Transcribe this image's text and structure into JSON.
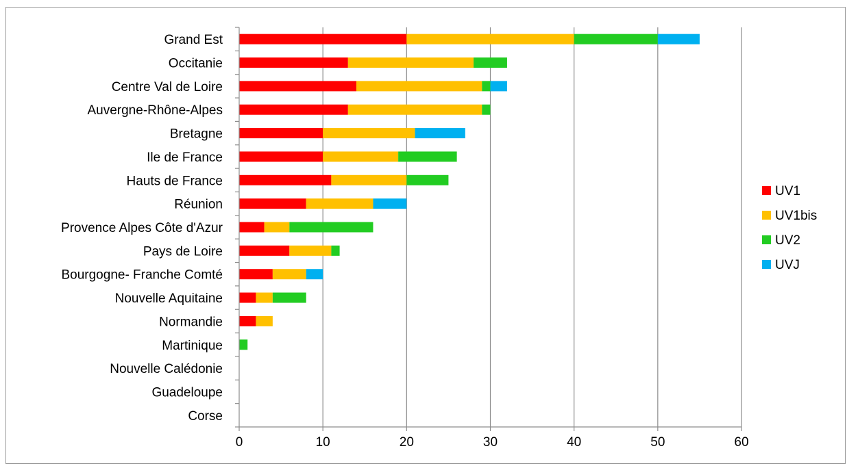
{
  "chart_data": {
    "type": "bar",
    "orientation": "horizontal",
    "stacked": true,
    "title": "",
    "xlabel": "",
    "ylabel": "",
    "xlim": [
      0,
      60
    ],
    "x_ticks": [
      0,
      10,
      20,
      30,
      40,
      50,
      60
    ],
    "grid": "vertical",
    "legend_position": "right",
    "categories": [
      "Grand Est",
      "Occitanie",
      "Centre Val de Loire",
      "Auvergne-Rhône-Alpes",
      "Bretagne",
      "Ile de France",
      "Hauts de France",
      "Réunion",
      "Provence Alpes Côte d'Azur",
      "Pays de Loire",
      "Bourgogne- Franche Comté",
      "Nouvelle Aquitaine",
      "Normandie",
      "Martinique",
      "Nouvelle Calédonie",
      "Guadeloupe",
      "Corse"
    ],
    "series": [
      {
        "name": "UV1",
        "color": "#ff0000",
        "values": [
          20,
          13,
          14,
          13,
          10,
          10,
          11,
          8,
          3,
          6,
          4,
          2,
          2,
          0,
          0,
          0,
          0
        ]
      },
      {
        "name": "UV1bis",
        "color": "#ffc000",
        "values": [
          20,
          15,
          15,
          16,
          11,
          9,
          9,
          8,
          3,
          5,
          4,
          2,
          2,
          0,
          0,
          0,
          0
        ]
      },
      {
        "name": "UV2",
        "color": "#22cc22",
        "values": [
          10,
          4,
          1,
          1,
          0,
          7,
          5,
          0,
          10,
          1,
          0,
          4,
          0,
          1,
          0,
          0,
          0
        ]
      },
      {
        "name": "UVJ",
        "color": "#00b0f0",
        "values": [
          5,
          0,
          2,
          0,
          6,
          0,
          0,
          4,
          0,
          0,
          2,
          0,
          0,
          0,
          0,
          0,
          0
        ]
      }
    ]
  }
}
